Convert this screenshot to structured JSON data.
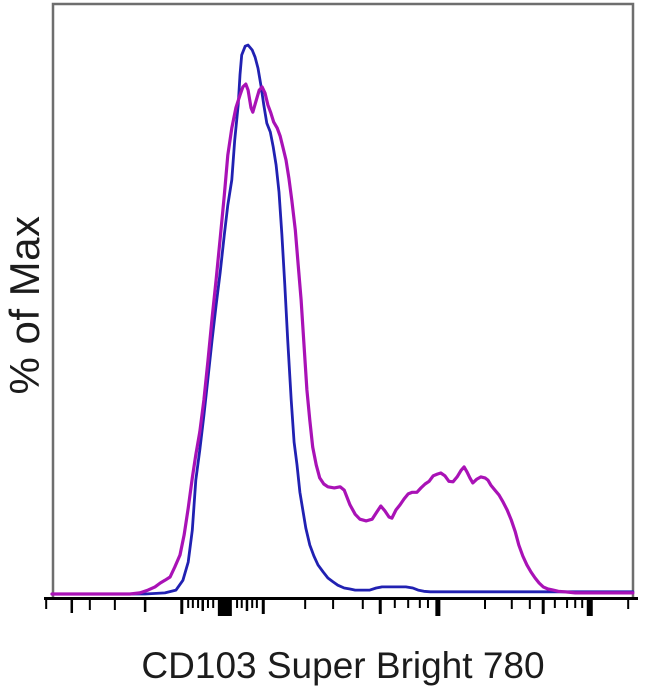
{
  "figure": {
    "background": "#ffffff",
    "frame_color": "#6e6e6e",
    "axis_color": "#000000",
    "text_color": "#1c1c1c"
  },
  "chart_data": {
    "type": "line",
    "subtype": "flow-cytometry-histogram-overlay",
    "title": "",
    "xlabel": "CD103 Super Bright 780",
    "ylabel": "% of Max",
    "legend": "none",
    "grid": false,
    "x_axis": {
      "scale": "biexponential-log",
      "tick_labels": "none (unlabeled fluorescence intensity axis)",
      "range_pct": [
        0,
        100
      ]
    },
    "y_axis": {
      "units": "% of max",
      "range": [
        0,
        100
      ],
      "tick_labels": "none"
    },
    "series": [
      {
        "name": "blue-histogram",
        "color": "#2121b2",
        "stroke_width": 2.8,
        "description": "single narrow negative peak, x=pct across axis, y=% of max",
        "points": [
          [
            0,
            0
          ],
          [
            16,
            0
          ],
          [
            19.4,
            0.2
          ],
          [
            21.3,
            0.7
          ],
          [
            22.5,
            2.5
          ],
          [
            23.4,
            5.8
          ],
          [
            24.1,
            11.6
          ],
          [
            24.7,
            20.7
          ],
          [
            25.4,
            26.2
          ],
          [
            26.1,
            32.5
          ],
          [
            26.8,
            39.3
          ],
          [
            27.5,
            46.2
          ],
          [
            28.2,
            52.5
          ],
          [
            28.9,
            58.5
          ],
          [
            29.6,
            65.3
          ],
          [
            30.2,
            70.7
          ],
          [
            30.9,
            75.3
          ],
          [
            31.4,
            82.5
          ],
          [
            32,
            88.9
          ],
          [
            32.3,
            94.4
          ],
          [
            32.6,
            98
          ],
          [
            33.2,
            99.6
          ],
          [
            33.7,
            99.8
          ],
          [
            34.4,
            98.9
          ],
          [
            34.9,
            97.6
          ],
          [
            35.4,
            95.6
          ],
          [
            35.9,
            92.5
          ],
          [
            36.4,
            88.9
          ],
          [
            36.9,
            85.6
          ],
          [
            37.5,
            84
          ],
          [
            38,
            81.3
          ],
          [
            38.5,
            78
          ],
          [
            39,
            73.1
          ],
          [
            39.5,
            65.3
          ],
          [
            40,
            56.2
          ],
          [
            40.5,
            46.2
          ],
          [
            41.1,
            35.3
          ],
          [
            41.6,
            27.6
          ],
          [
            42.1,
            23.5
          ],
          [
            42.6,
            18.5
          ],
          [
            43.1,
            15.3
          ],
          [
            43.6,
            12
          ],
          [
            44.3,
            8.9
          ],
          [
            45,
            6.9
          ],
          [
            45.7,
            5.3
          ],
          [
            46.6,
            4
          ],
          [
            47.4,
            2.9
          ],
          [
            48.3,
            2.2
          ],
          [
            49.1,
            1.6
          ],
          [
            50.2,
            1.1
          ],
          [
            51.2,
            0.9
          ],
          [
            52.1,
            0.7
          ],
          [
            54.6,
            0.7
          ],
          [
            55.7,
            1.1
          ],
          [
            56.7,
            1.3
          ],
          [
            60.8,
            1.3
          ],
          [
            62,
            1.1
          ],
          [
            62.9,
            0.7
          ],
          [
            63.9,
            0.5
          ],
          [
            65,
            0.4
          ],
          [
            71.8,
            0.4
          ],
          [
            83.8,
            0.4
          ],
          [
            99.8,
            0.4
          ]
        ]
      },
      {
        "name": "magenta-histogram",
        "color": "#a912b6",
        "stroke_width": 3.2,
        "description": "bimodal: tall negative peak with double tip plus broad positive bump, x=pct across axis, y=% of max",
        "points": [
          [
            0,
            0
          ],
          [
            13.4,
            0
          ],
          [
            15.1,
            0.2
          ],
          [
            16.5,
            0.7
          ],
          [
            17.7,
            1.3
          ],
          [
            18.6,
            2
          ],
          [
            19.4,
            2.5
          ],
          [
            20.3,
            3.1
          ],
          [
            21.1,
            4.9
          ],
          [
            22,
            7.1
          ],
          [
            22.7,
            10.7
          ],
          [
            23.4,
            15.6
          ],
          [
            24.1,
            21.1
          ],
          [
            24.7,
            25.3
          ],
          [
            25.4,
            29.5
          ],
          [
            26.1,
            35.3
          ],
          [
            26.8,
            42.5
          ],
          [
            27.5,
            50.2
          ],
          [
            28.2,
            57.1
          ],
          [
            28.9,
            64.7
          ],
          [
            29.6,
            72.5
          ],
          [
            30.2,
            79.8
          ],
          [
            30.9,
            84.7
          ],
          [
            31.6,
            88.4
          ],
          [
            32.3,
            90.7
          ],
          [
            32.8,
            92.2
          ],
          [
            33.3,
            92.7
          ],
          [
            33.7,
            91.6
          ],
          [
            34.2,
            88.4
          ],
          [
            34.5,
            87.6
          ],
          [
            35.1,
            89.8
          ],
          [
            35.6,
            91.6
          ],
          [
            36.1,
            92.2
          ],
          [
            36.6,
            91.1
          ],
          [
            37.1,
            88.9
          ],
          [
            37.6,
            87.5
          ],
          [
            38.1,
            85.8
          ],
          [
            38.7,
            84.7
          ],
          [
            39.2,
            83.3
          ],
          [
            39.7,
            81.1
          ],
          [
            40.2,
            78.9
          ],
          [
            40.7,
            75.6
          ],
          [
            41.2,
            71.6
          ],
          [
            41.8,
            66.2
          ],
          [
            42.3,
            59.8
          ],
          [
            42.8,
            53.5
          ],
          [
            43.3,
            45.3
          ],
          [
            43.8,
            37.1
          ],
          [
            44.3,
            31.6
          ],
          [
            44.8,
            26.7
          ],
          [
            45.4,
            23.5
          ],
          [
            46,
            21.1
          ],
          [
            46.7,
            20
          ],
          [
            47.4,
            19.5
          ],
          [
            48.5,
            19.3
          ],
          [
            49.5,
            19.5
          ],
          [
            50.2,
            18.9
          ],
          [
            51.2,
            16.2
          ],
          [
            52.1,
            14.5
          ],
          [
            52.9,
            13.6
          ],
          [
            54,
            13.3
          ],
          [
            55,
            13.6
          ],
          [
            55.8,
            14.9
          ],
          [
            56.5,
            16
          ],
          [
            57.2,
            15.1
          ],
          [
            57.9,
            14
          ],
          [
            58.4,
            13.8
          ],
          [
            59.1,
            15.3
          ],
          [
            59.8,
            16.2
          ],
          [
            60.5,
            17.3
          ],
          [
            61.2,
            18.2
          ],
          [
            61.9,
            18.5
          ],
          [
            62.7,
            18.5
          ],
          [
            63.4,
            19.3
          ],
          [
            64.1,
            20
          ],
          [
            64.8,
            20.5
          ],
          [
            65.5,
            21.5
          ],
          [
            66.2,
            21.8
          ],
          [
            66.8,
            22
          ],
          [
            67.5,
            21.5
          ],
          [
            68.2,
            20.5
          ],
          [
            68.9,
            20.4
          ],
          [
            69.6,
            21.3
          ],
          [
            70.3,
            22.5
          ],
          [
            70.8,
            23.1
          ],
          [
            71.3,
            22.2
          ],
          [
            71.8,
            21.1
          ],
          [
            72.3,
            20.2
          ],
          [
            73,
            20.9
          ],
          [
            73.7,
            21.3
          ],
          [
            74.4,
            21.1
          ],
          [
            74.9,
            20.7
          ],
          [
            75.4,
            19.8
          ],
          [
            76.1,
            18.9
          ],
          [
            76.8,
            18
          ],
          [
            77.5,
            16.7
          ],
          [
            78.2,
            15.3
          ],
          [
            78.9,
            13.5
          ],
          [
            79.6,
            11.3
          ],
          [
            80.2,
            8.9
          ],
          [
            80.9,
            6.9
          ],
          [
            81.6,
            5.3
          ],
          [
            82.3,
            4
          ],
          [
            83,
            2.9
          ],
          [
            83.7,
            2
          ],
          [
            84.4,
            1.3
          ],
          [
            85.2,
            0.9
          ],
          [
            86.1,
            0.7
          ],
          [
            87,
            0.5
          ],
          [
            88.1,
            0.4
          ],
          [
            89.9,
            0.2
          ],
          [
            99.8,
            0.2
          ]
        ]
      }
    ],
    "axis_ticks": {
      "format": "[x_pct_across_axis, tick_width_px, tick_height_px]",
      "ticks": [
        [
          -1,
          2,
          9
        ],
        [
          3.4,
          2.5,
          13
        ],
        [
          6.5,
          2,
          10
        ],
        [
          10.8,
          2,
          10
        ],
        [
          16,
          2.5,
          12
        ],
        [
          22.3,
          3,
          14
        ],
        [
          23.4,
          2,
          8
        ],
        [
          24.2,
          2,
          8
        ],
        [
          25.1,
          2,
          8
        ],
        [
          25.9,
          2.5,
          11
        ],
        [
          26.8,
          2,
          8
        ],
        [
          27.7,
          2,
          8
        ],
        [
          29.7,
          14,
          16
        ],
        [
          31.8,
          2,
          8
        ],
        [
          32.6,
          2,
          8
        ],
        [
          33.5,
          2.5,
          11
        ],
        [
          34.4,
          2,
          8
        ],
        [
          35.2,
          2,
          8
        ],
        [
          36.3,
          3,
          14
        ],
        [
          43.5,
          2,
          9
        ],
        [
          48.3,
          2,
          9
        ],
        [
          53.4,
          2,
          9
        ],
        [
          56.4,
          3,
          14
        ],
        [
          58.9,
          2,
          8
        ],
        [
          61.2,
          2,
          8
        ],
        [
          63.2,
          2,
          8
        ],
        [
          64.6,
          2,
          8
        ],
        [
          66.3,
          5,
          16
        ],
        [
          74.4,
          2,
          9
        ],
        [
          79,
          2,
          9
        ],
        [
          82.1,
          2,
          9
        ],
        [
          84.4,
          3,
          14
        ],
        [
          86.4,
          2,
          8
        ],
        [
          88.5,
          2,
          8
        ],
        [
          89.9,
          2,
          8
        ],
        [
          91.1,
          2,
          8
        ],
        [
          92.4,
          6,
          16
        ],
        [
          99,
          2,
          9
        ]
      ]
    }
  }
}
